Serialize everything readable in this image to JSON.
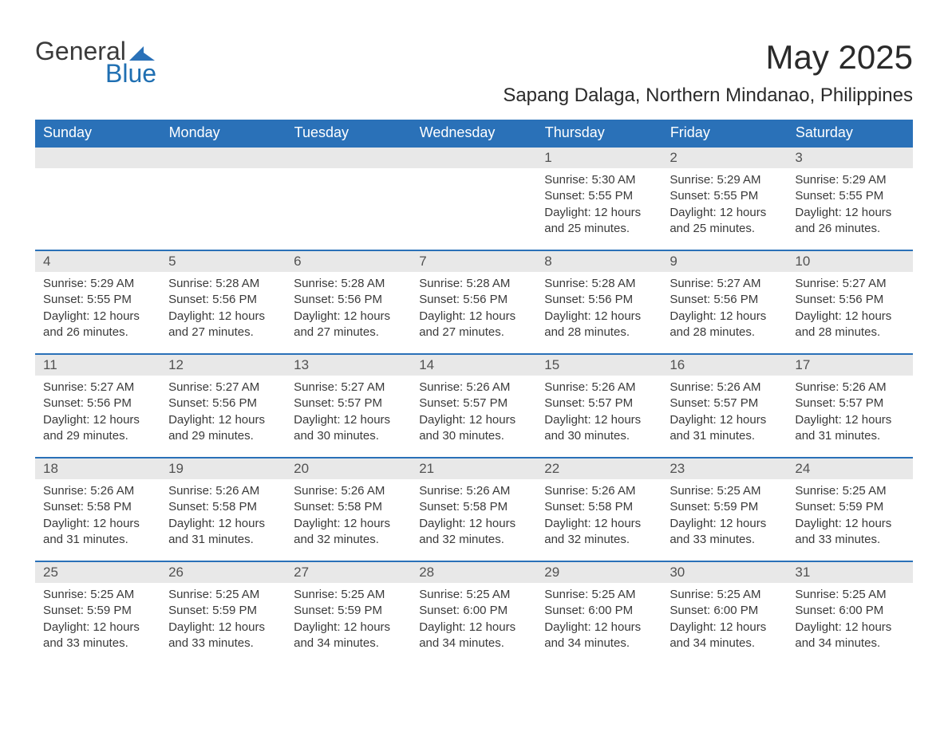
{
  "logo": {
    "general": "General",
    "blue": "Blue",
    "icon_color": "#2a71b8"
  },
  "title": "May 2025",
  "location": "Sapang Dalaga, Northern Mindanao, Philippines",
  "colors": {
    "header_bg": "#2a71b8",
    "header_text": "#ffffff",
    "daynum_bg": "#e8e8e8",
    "daynum_text": "#525252",
    "body_text": "#3a3a3a",
    "row_border": "#2a71b8"
  },
  "weekdays": [
    "Sunday",
    "Monday",
    "Tuesday",
    "Wednesday",
    "Thursday",
    "Friday",
    "Saturday"
  ],
  "weeks": [
    [
      {
        "empty": true
      },
      {
        "empty": true
      },
      {
        "empty": true
      },
      {
        "empty": true
      },
      {
        "day": "1",
        "sunrise": "Sunrise: 5:30 AM",
        "sunset": "Sunset: 5:55 PM",
        "daylight1": "Daylight: 12 hours",
        "daylight2": "and 25 minutes."
      },
      {
        "day": "2",
        "sunrise": "Sunrise: 5:29 AM",
        "sunset": "Sunset: 5:55 PM",
        "daylight1": "Daylight: 12 hours",
        "daylight2": "and 25 minutes."
      },
      {
        "day": "3",
        "sunrise": "Sunrise: 5:29 AM",
        "sunset": "Sunset: 5:55 PM",
        "daylight1": "Daylight: 12 hours",
        "daylight2": "and 26 minutes."
      }
    ],
    [
      {
        "day": "4",
        "sunrise": "Sunrise: 5:29 AM",
        "sunset": "Sunset: 5:55 PM",
        "daylight1": "Daylight: 12 hours",
        "daylight2": "and 26 minutes."
      },
      {
        "day": "5",
        "sunrise": "Sunrise: 5:28 AM",
        "sunset": "Sunset: 5:56 PM",
        "daylight1": "Daylight: 12 hours",
        "daylight2": "and 27 minutes."
      },
      {
        "day": "6",
        "sunrise": "Sunrise: 5:28 AM",
        "sunset": "Sunset: 5:56 PM",
        "daylight1": "Daylight: 12 hours",
        "daylight2": "and 27 minutes."
      },
      {
        "day": "7",
        "sunrise": "Sunrise: 5:28 AM",
        "sunset": "Sunset: 5:56 PM",
        "daylight1": "Daylight: 12 hours",
        "daylight2": "and 27 minutes."
      },
      {
        "day": "8",
        "sunrise": "Sunrise: 5:28 AM",
        "sunset": "Sunset: 5:56 PM",
        "daylight1": "Daylight: 12 hours",
        "daylight2": "and 28 minutes."
      },
      {
        "day": "9",
        "sunrise": "Sunrise: 5:27 AM",
        "sunset": "Sunset: 5:56 PM",
        "daylight1": "Daylight: 12 hours",
        "daylight2": "and 28 minutes."
      },
      {
        "day": "10",
        "sunrise": "Sunrise: 5:27 AM",
        "sunset": "Sunset: 5:56 PM",
        "daylight1": "Daylight: 12 hours",
        "daylight2": "and 28 minutes."
      }
    ],
    [
      {
        "day": "11",
        "sunrise": "Sunrise: 5:27 AM",
        "sunset": "Sunset: 5:56 PM",
        "daylight1": "Daylight: 12 hours",
        "daylight2": "and 29 minutes."
      },
      {
        "day": "12",
        "sunrise": "Sunrise: 5:27 AM",
        "sunset": "Sunset: 5:56 PM",
        "daylight1": "Daylight: 12 hours",
        "daylight2": "and 29 minutes."
      },
      {
        "day": "13",
        "sunrise": "Sunrise: 5:27 AM",
        "sunset": "Sunset: 5:57 PM",
        "daylight1": "Daylight: 12 hours",
        "daylight2": "and 30 minutes."
      },
      {
        "day": "14",
        "sunrise": "Sunrise: 5:26 AM",
        "sunset": "Sunset: 5:57 PM",
        "daylight1": "Daylight: 12 hours",
        "daylight2": "and 30 minutes."
      },
      {
        "day": "15",
        "sunrise": "Sunrise: 5:26 AM",
        "sunset": "Sunset: 5:57 PM",
        "daylight1": "Daylight: 12 hours",
        "daylight2": "and 30 minutes."
      },
      {
        "day": "16",
        "sunrise": "Sunrise: 5:26 AM",
        "sunset": "Sunset: 5:57 PM",
        "daylight1": "Daylight: 12 hours",
        "daylight2": "and 31 minutes."
      },
      {
        "day": "17",
        "sunrise": "Sunrise: 5:26 AM",
        "sunset": "Sunset: 5:57 PM",
        "daylight1": "Daylight: 12 hours",
        "daylight2": "and 31 minutes."
      }
    ],
    [
      {
        "day": "18",
        "sunrise": "Sunrise: 5:26 AM",
        "sunset": "Sunset: 5:58 PM",
        "daylight1": "Daylight: 12 hours",
        "daylight2": "and 31 minutes."
      },
      {
        "day": "19",
        "sunrise": "Sunrise: 5:26 AM",
        "sunset": "Sunset: 5:58 PM",
        "daylight1": "Daylight: 12 hours",
        "daylight2": "and 31 minutes."
      },
      {
        "day": "20",
        "sunrise": "Sunrise: 5:26 AM",
        "sunset": "Sunset: 5:58 PM",
        "daylight1": "Daylight: 12 hours",
        "daylight2": "and 32 minutes."
      },
      {
        "day": "21",
        "sunrise": "Sunrise: 5:26 AM",
        "sunset": "Sunset: 5:58 PM",
        "daylight1": "Daylight: 12 hours",
        "daylight2": "and 32 minutes."
      },
      {
        "day": "22",
        "sunrise": "Sunrise: 5:26 AM",
        "sunset": "Sunset: 5:58 PM",
        "daylight1": "Daylight: 12 hours",
        "daylight2": "and 32 minutes."
      },
      {
        "day": "23",
        "sunrise": "Sunrise: 5:25 AM",
        "sunset": "Sunset: 5:59 PM",
        "daylight1": "Daylight: 12 hours",
        "daylight2": "and 33 minutes."
      },
      {
        "day": "24",
        "sunrise": "Sunrise: 5:25 AM",
        "sunset": "Sunset: 5:59 PM",
        "daylight1": "Daylight: 12 hours",
        "daylight2": "and 33 minutes."
      }
    ],
    [
      {
        "day": "25",
        "sunrise": "Sunrise: 5:25 AM",
        "sunset": "Sunset: 5:59 PM",
        "daylight1": "Daylight: 12 hours",
        "daylight2": "and 33 minutes."
      },
      {
        "day": "26",
        "sunrise": "Sunrise: 5:25 AM",
        "sunset": "Sunset: 5:59 PM",
        "daylight1": "Daylight: 12 hours",
        "daylight2": "and 33 minutes."
      },
      {
        "day": "27",
        "sunrise": "Sunrise: 5:25 AM",
        "sunset": "Sunset: 5:59 PM",
        "daylight1": "Daylight: 12 hours",
        "daylight2": "and 34 minutes."
      },
      {
        "day": "28",
        "sunrise": "Sunrise: 5:25 AM",
        "sunset": "Sunset: 6:00 PM",
        "daylight1": "Daylight: 12 hours",
        "daylight2": "and 34 minutes."
      },
      {
        "day": "29",
        "sunrise": "Sunrise: 5:25 AM",
        "sunset": "Sunset: 6:00 PM",
        "daylight1": "Daylight: 12 hours",
        "daylight2": "and 34 minutes."
      },
      {
        "day": "30",
        "sunrise": "Sunrise: 5:25 AM",
        "sunset": "Sunset: 6:00 PM",
        "daylight1": "Daylight: 12 hours",
        "daylight2": "and 34 minutes."
      },
      {
        "day": "31",
        "sunrise": "Sunrise: 5:25 AM",
        "sunset": "Sunset: 6:00 PM",
        "daylight1": "Daylight: 12 hours",
        "daylight2": "and 34 minutes."
      }
    ]
  ]
}
